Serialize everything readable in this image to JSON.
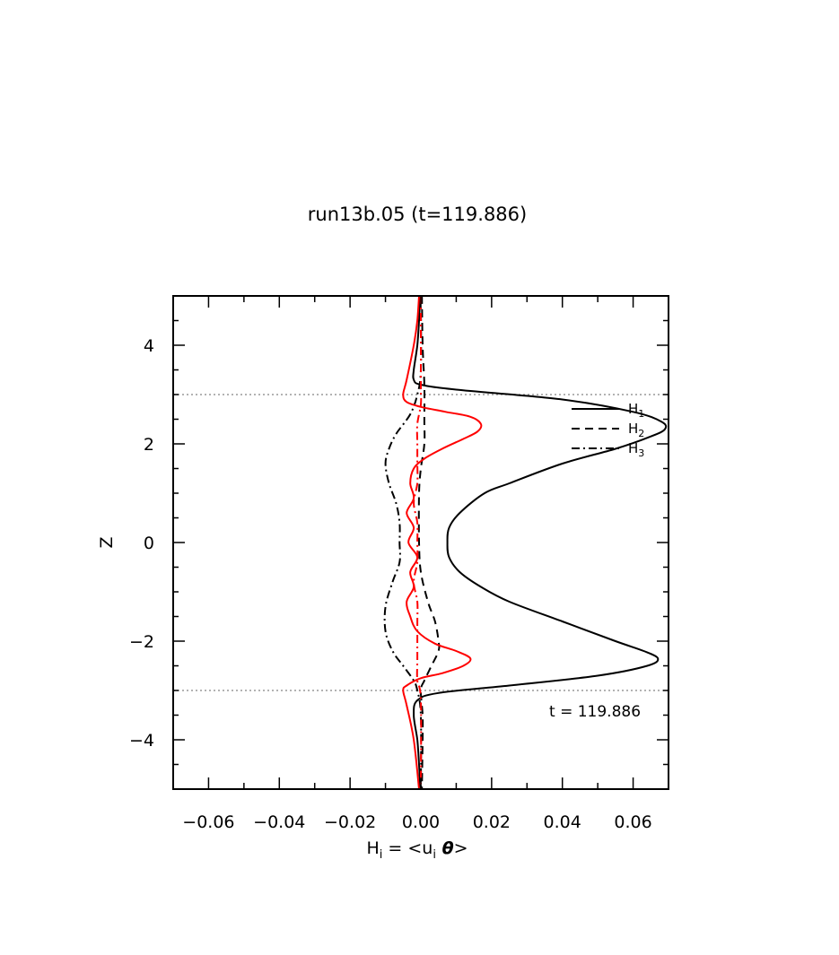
{
  "chart_data": {
    "type": "line",
    "title": "run13b.05 (t=119.886)",
    "xlabel": {
      "H": "H",
      "sub": "i",
      "mid": " = <u",
      "sub2": "i",
      "theta": " θ",
      "end": ">"
    },
    "ylabel": "Z",
    "xlim": [
      -0.07,
      0.07
    ],
    "ylim": [
      -5,
      5
    ],
    "xticks": [
      {
        "value": -0.06,
        "label": "−0.06"
      },
      {
        "value": -0.04,
        "label": "−0.04"
      },
      {
        "value": -0.02,
        "label": "−0.02"
      },
      {
        "value": 0.0,
        "label": "0.00"
      },
      {
        "value": 0.02,
        "label": "0.02"
      },
      {
        "value": 0.04,
        "label": "0.04"
      },
      {
        "value": 0.06,
        "label": "0.06"
      }
    ],
    "yticks": [
      {
        "value": -4,
        "label": "−4"
      },
      {
        "value": -2,
        "label": "−2"
      },
      {
        "value": 0,
        "label": "0"
      },
      {
        "value": 2,
        "label": "2"
      },
      {
        "value": 4,
        "label": "4"
      }
    ],
    "hlines": [
      3,
      -3
    ],
    "annotation": "t = 119.886",
    "legend": {
      "placement": "top-right",
      "entries": [
        {
          "base": "H",
          "sub": "1",
          "style": "solid"
        },
        {
          "base": "H",
          "sub": "2",
          "style": "dashed"
        },
        {
          "base": "H",
          "sub": "3",
          "style": "dashdot"
        }
      ]
    },
    "series": [
      {
        "style": "solid",
        "color": "#000000",
        "points": [
          [
            -0.0002,
            5
          ],
          [
            -0.0005,
            4.5
          ],
          [
            -0.001,
            4.0
          ],
          [
            -0.002,
            3.5
          ],
          [
            -0.002,
            3.3
          ],
          [
            0.0,
            3.2
          ],
          [
            0.01,
            3.1
          ],
          [
            0.04,
            2.9
          ],
          [
            0.06,
            2.65
          ],
          [
            0.068,
            2.45
          ],
          [
            0.069,
            2.3
          ],
          [
            0.065,
            2.15
          ],
          [
            0.055,
            1.9
          ],
          [
            0.04,
            1.6
          ],
          [
            0.025,
            1.2
          ],
          [
            0.018,
            1.0
          ],
          [
            0.011,
            0.6
          ],
          [
            0.008,
            0.3
          ],
          [
            0.0075,
            0.0
          ],
          [
            0.008,
            -0.3
          ],
          [
            0.011,
            -0.6
          ],
          [
            0.017,
            -0.9
          ],
          [
            0.025,
            -1.2
          ],
          [
            0.04,
            -1.6
          ],
          [
            0.055,
            -2.0
          ],
          [
            0.063,
            -2.2
          ],
          [
            0.067,
            -2.35
          ],
          [
            0.064,
            -2.5
          ],
          [
            0.05,
            -2.7
          ],
          [
            0.025,
            -2.9
          ],
          [
            0.005,
            -3.05
          ],
          [
            -0.001,
            -3.2
          ],
          [
            -0.002,
            -3.5
          ],
          [
            -0.001,
            -4.0
          ],
          [
            -0.0005,
            -4.5
          ],
          [
            -0.0002,
            -5
          ]
        ]
      },
      {
        "style": "dashed",
        "color": "#000000",
        "points": [
          [
            0.0003,
            5
          ],
          [
            0.0005,
            4.0
          ],
          [
            0.001,
            3.2
          ],
          [
            0.001,
            2.5
          ],
          [
            0.001,
            2.0
          ],
          [
            0.0,
            1.5
          ],
          [
            -0.0005,
            1.0
          ],
          [
            -0.0005,
            0.0
          ],
          [
            0.0,
            -0.6
          ],
          [
            0.002,
            -1.2
          ],
          [
            0.004,
            -1.6
          ],
          [
            0.005,
            -2.0
          ],
          [
            0.005,
            -2.2
          ],
          [
            0.003,
            -2.5
          ],
          [
            0.001,
            -2.8
          ],
          [
            0.0,
            -3.0
          ],
          [
            0.0005,
            -3.5
          ],
          [
            0.0005,
            -4.0
          ],
          [
            0.0003,
            -5
          ]
        ]
      },
      {
        "style": "dashdot",
        "color": "#000000",
        "points": [
          [
            0.0,
            5
          ],
          [
            0.0,
            3.5
          ],
          [
            -0.001,
            3.0
          ],
          [
            -0.003,
            2.6
          ],
          [
            -0.007,
            2.2
          ],
          [
            -0.009,
            1.9
          ],
          [
            -0.01,
            1.6
          ],
          [
            -0.009,
            1.2
          ],
          [
            -0.007,
            0.8
          ],
          [
            -0.006,
            0.4
          ],
          [
            -0.006,
            0.0
          ],
          [
            -0.006,
            -0.4
          ],
          [
            -0.008,
            -0.8
          ],
          [
            -0.01,
            -1.3
          ],
          [
            -0.01,
            -1.8
          ],
          [
            -0.008,
            -2.2
          ],
          [
            -0.005,
            -2.5
          ],
          [
            -0.002,
            -2.8
          ],
          [
            -0.001,
            -3.0
          ],
          [
            0.0,
            -3.5
          ],
          [
            0.0,
            -5
          ]
        ]
      },
      {
        "style": "solid",
        "color": "#ff0000",
        "points": [
          [
            -0.0005,
            5
          ],
          [
            -0.001,
            4.5
          ],
          [
            -0.002,
            4.0
          ],
          [
            -0.004,
            3.3
          ],
          [
            -0.005,
            3.0
          ],
          [
            -0.004,
            2.85
          ],
          [
            0.0,
            2.75
          ],
          [
            0.007,
            2.65
          ],
          [
            0.014,
            2.55
          ],
          [
            0.017,
            2.4
          ],
          [
            0.016,
            2.25
          ],
          [
            0.012,
            2.1
          ],
          [
            0.006,
            1.9
          ],
          [
            0.001,
            1.7
          ],
          [
            -0.002,
            1.5
          ],
          [
            -0.003,
            1.2
          ],
          [
            -0.002,
            0.9
          ],
          [
            -0.004,
            0.6
          ],
          [
            -0.002,
            0.3
          ],
          [
            -0.0035,
            0.0
          ],
          [
            -0.001,
            -0.3
          ],
          [
            -0.003,
            -0.6
          ],
          [
            -0.002,
            -0.9
          ],
          [
            -0.004,
            -1.2
          ],
          [
            -0.003,
            -1.5
          ],
          [
            -0.001,
            -1.8
          ],
          [
            0.004,
            -2.05
          ],
          [
            0.01,
            -2.2
          ],
          [
            0.014,
            -2.35
          ],
          [
            0.012,
            -2.5
          ],
          [
            0.006,
            -2.65
          ],
          [
            0.0,
            -2.75
          ],
          [
            -0.004,
            -2.9
          ],
          [
            -0.005,
            -3.0
          ],
          [
            -0.004,
            -3.3
          ],
          [
            -0.002,
            -4.0
          ],
          [
            -0.0005,
            -5
          ]
        ]
      },
      {
        "style": "dashdot",
        "color": "#ff0000",
        "points": [
          [
            0.0,
            5
          ],
          [
            0.0,
            3.2
          ],
          [
            0.0,
            2.8
          ],
          [
            -0.001,
            2.4
          ],
          [
            -0.001,
            2.0
          ],
          [
            -0.001,
            1.6
          ],
          [
            -0.001,
            1.2
          ],
          [
            -0.002,
            0.8
          ],
          [
            -0.001,
            0.4
          ],
          [
            -0.001,
            0.0
          ],
          [
            -0.001,
            -0.4
          ],
          [
            -0.002,
            -0.8
          ],
          [
            -0.001,
            -1.2
          ],
          [
            -0.001,
            -1.6
          ],
          [
            -0.001,
            -2.0
          ],
          [
            -0.001,
            -2.4
          ],
          [
            -0.001,
            -2.8
          ],
          [
            0.0,
            -3.2
          ],
          [
            0.0,
            -5
          ]
        ]
      }
    ]
  }
}
